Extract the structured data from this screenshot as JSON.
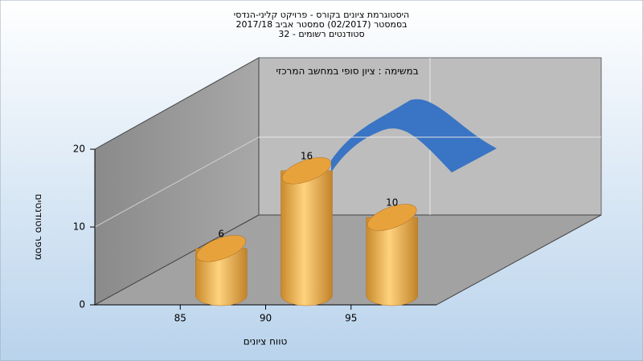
{
  "chart_data": {
    "type": "bar",
    "title": [
      "היסטוגרמת ציונים בקורס - פרויקט קליני-הנדסי",
      "בסמסטר (02/2017) סמסטר אביב 2017/18",
      "סטודנטים רשומים - 32"
    ],
    "annotation": "במשימה : ציון סופי במחשב המרכזי",
    "xlabel": "טווח ציונים",
    "ylabel": "מספר סטודנטים",
    "categories": [
      "85",
      "90",
      "95"
    ],
    "values": [
      6,
      16,
      10
    ],
    "color": "#f0b050",
    "ylim": [
      0,
      20
    ],
    "yticks": [
      0,
      10,
      20
    ],
    "grid": true
  }
}
